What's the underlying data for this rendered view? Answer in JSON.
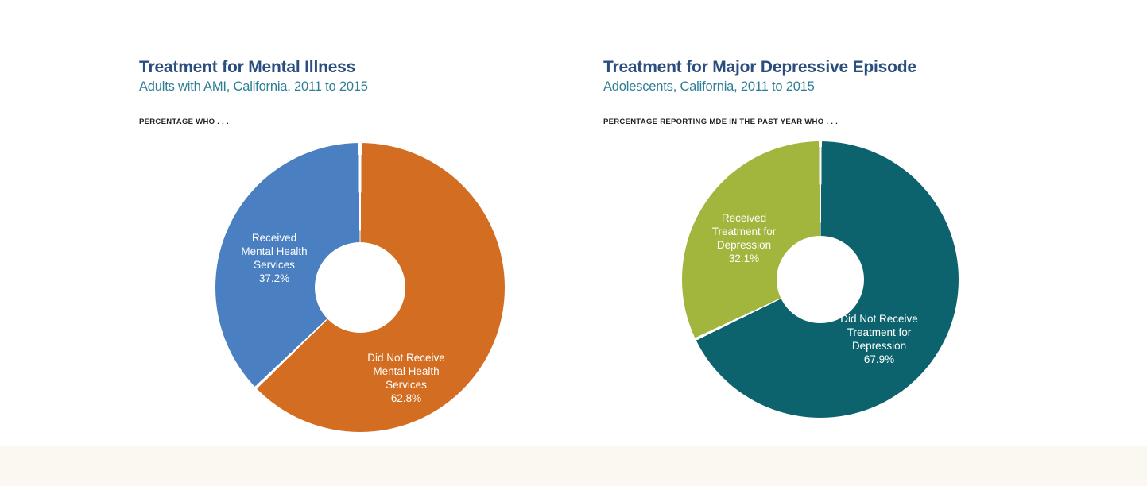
{
  "colors": {
    "title": "#2b4e7e",
    "subtitle": "#2e7e96",
    "caption": "#231f20",
    "slice_blue": "#4a7fc1",
    "slice_orange": "#d36d21",
    "slice_green": "#a2b53c",
    "slice_teal": "#0c636e",
    "footer_band": "#fbf8f1"
  },
  "chart_data": [
    {
      "type": "pie",
      "donut": true,
      "title": "Treatment for Mental Illness",
      "subtitle": "Adults with AMI, California, 2011 to 2015",
      "caption": "PERCENTAGE WHO . . .",
      "start_angle": "top",
      "direction": "clockwise",
      "legend": "none (labels inside slices)",
      "slices": [
        {
          "name": "Did Not Receive Mental Health Services",
          "value": 62.8,
          "display": "62.8%",
          "color": "#d36d21",
          "lines": [
            "Did Not Receive",
            "Mental Health",
            "Services",
            "62.8%"
          ]
        },
        {
          "name": "Received Mental Health Services",
          "value": 37.2,
          "display": "37.2%",
          "color": "#4a7fc1",
          "lines": [
            "Received",
            "Mental Health",
            "Services",
            "37.2%"
          ]
        }
      ]
    },
    {
      "type": "pie",
      "donut": true,
      "title": "Treatment for Major Depressive Episode",
      "subtitle": "Adolescents, California, 2011 to 2015",
      "caption": "PERCENTAGE REPORTING MDE IN THE PAST YEAR WHO . . .",
      "start_angle": "top",
      "direction": "clockwise",
      "legend": "none (labels inside slices)",
      "slices": [
        {
          "name": "Did Not Receive Treatment for Depression",
          "value": 67.9,
          "display": "67.9%",
          "color": "#0c636e",
          "lines": [
            "Did Not Receive",
            "Treatment for",
            "Depression",
            "67.9%"
          ]
        },
        {
          "name": "Received Treatment for Depression",
          "value": 32.1,
          "display": "32.1%",
          "color": "#a2b53c",
          "lines": [
            "Received",
            "Treatment for",
            "Depression",
            "32.1%"
          ]
        }
      ]
    }
  ]
}
